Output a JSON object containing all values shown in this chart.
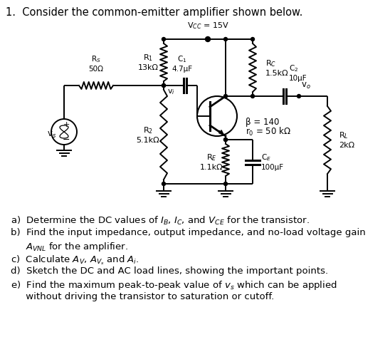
{
  "bg": "#ffffff",
  "title": "1.  Consider the common-emitter amplifier shown below.",
  "vcc": "V$_{CC}$ = 15V",
  "r1": "R$_1$\n13kΩ",
  "r2": "R$_2$\n5.1kΩ",
  "rc": "R$_C$\n1.5kΩ",
  "re": "R$_E$\n1.1kΩ",
  "rl": "R$_L$\n2kΩ",
  "c1": "C$_1$\n4.7μF",
  "c2": "C$_2$\n10μF",
  "ce": "C$_E$\n100μF",
  "rs": "R$_S$\n50Ω",
  "vs": "v$_s$",
  "vi": "v$_i$",
  "vo": "v$_o$",
  "beta": "β = 140",
  "ro": "r$_0$ = 50 kΩ",
  "qa": "a)  Determine the DC values of $I_B$, $I_C$, and $V_{CE}$ for the transistor.",
  "qb1": "b)  Find the input impedance, output impedance, and no-load voltage gain",
  "qb2": "     $A_{VNL}$ for the amplifier.",
  "qc": "c)  Calculate $A_V$, $A_{V_s}$ and $A_i$.",
  "qd": "d)  Sketch the DC and AC load lines, showing the important points.",
  "qe1": "e)  Find the maximum peak-to-peak value of $v_s$ which can be applied",
  "qe2": "     without driving the transistor to saturation or cutoff."
}
